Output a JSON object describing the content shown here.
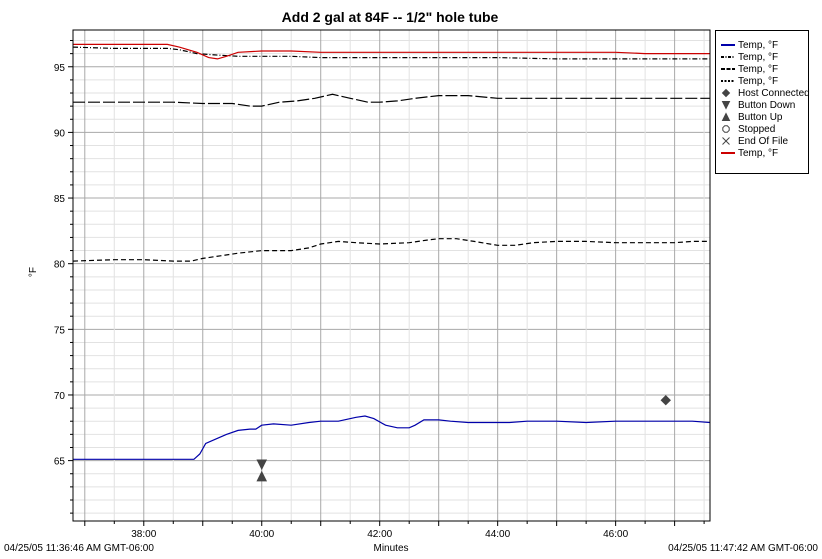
{
  "chart_data": {
    "type": "line",
    "title": "Add 2 gal at 84F -- 1/2\" hole tube",
    "xlabel": "Minutes",
    "ylabel": "°F",
    "xlim": [
      36.8,
      47.6
    ],
    "ylim": [
      60.4,
      97.8
    ],
    "x_ticks": [
      {
        "value": 38,
        "label": "38:00"
      },
      {
        "value": 40,
        "label": "40:00"
      },
      {
        "value": 42,
        "label": "42:00"
      },
      {
        "value": 44,
        "label": "44:00"
      },
      {
        "value": 46,
        "label": "46:00"
      }
    ],
    "y_ticks": [
      65,
      70,
      75,
      80,
      85,
      90,
      95
    ],
    "grid": true,
    "legend_position": "right",
    "start_time": "04/25/05 11:36:46 AM GMT-06:00",
    "end_time": "04/25/05 11:47:42 AM GMT-06:00",
    "series": [
      {
        "name": "Temp, °F",
        "color": "#0000aa",
        "style": "solid",
        "points": [
          [
            36.8,
            65.1
          ],
          [
            37.5,
            65.1
          ],
          [
            38.0,
            65.1
          ],
          [
            38.5,
            65.1
          ],
          [
            38.85,
            65.1
          ],
          [
            38.95,
            65.5
          ],
          [
            39.05,
            66.3
          ],
          [
            39.2,
            66.6
          ],
          [
            39.4,
            67.0
          ],
          [
            39.6,
            67.3
          ],
          [
            39.8,
            67.4
          ],
          [
            39.9,
            67.4
          ],
          [
            40.0,
            67.7
          ],
          [
            40.2,
            67.8
          ],
          [
            40.5,
            67.7
          ],
          [
            40.8,
            67.9
          ],
          [
            41.0,
            68.0
          ],
          [
            41.3,
            68.0
          ],
          [
            41.6,
            68.3
          ],
          [
            41.75,
            68.4
          ],
          [
            41.9,
            68.2
          ],
          [
            42.1,
            67.7
          ],
          [
            42.3,
            67.5
          ],
          [
            42.5,
            67.5
          ],
          [
            42.6,
            67.7
          ],
          [
            42.75,
            68.1
          ],
          [
            43.0,
            68.1
          ],
          [
            43.2,
            68.0
          ],
          [
            43.5,
            67.9
          ],
          [
            43.8,
            67.9
          ],
          [
            44.2,
            67.9
          ],
          [
            44.5,
            68.0
          ],
          [
            45.0,
            68.0
          ],
          [
            45.5,
            67.9
          ],
          [
            46.0,
            68.0
          ],
          [
            46.5,
            68.0
          ],
          [
            47.0,
            68.0
          ],
          [
            47.3,
            68.0
          ],
          [
            47.6,
            67.9
          ]
        ]
      },
      {
        "name": "Temp, °F",
        "color": "#000000",
        "style": "dashdot",
        "points": [
          [
            36.8,
            96.5
          ],
          [
            37.5,
            96.4
          ],
          [
            38.0,
            96.4
          ],
          [
            38.4,
            96.4
          ],
          [
            38.6,
            96.3
          ],
          [
            38.9,
            96.0
          ],
          [
            39.2,
            95.9
          ],
          [
            39.6,
            95.8
          ],
          [
            40.0,
            95.8
          ],
          [
            40.5,
            95.8
          ],
          [
            41.0,
            95.7
          ],
          [
            41.5,
            95.7
          ],
          [
            42.0,
            95.7
          ],
          [
            43.0,
            95.7
          ],
          [
            44.0,
            95.7
          ],
          [
            45.0,
            95.6
          ],
          [
            46.0,
            95.6
          ],
          [
            47.0,
            95.6
          ],
          [
            47.6,
            95.6
          ]
        ]
      },
      {
        "name": "Temp, °F",
        "color": "#000000",
        "style": "longdash",
        "points": [
          [
            36.8,
            92.3
          ],
          [
            37.5,
            92.3
          ],
          [
            38.0,
            92.3
          ],
          [
            38.5,
            92.3
          ],
          [
            39.0,
            92.2
          ],
          [
            39.5,
            92.2
          ],
          [
            39.8,
            92.0
          ],
          [
            40.0,
            92.0
          ],
          [
            40.3,
            92.3
          ],
          [
            40.6,
            92.4
          ],
          [
            40.9,
            92.6
          ],
          [
            41.2,
            92.9
          ],
          [
            41.5,
            92.6
          ],
          [
            41.8,
            92.3
          ],
          [
            42.0,
            92.3
          ],
          [
            42.3,
            92.4
          ],
          [
            42.6,
            92.6
          ],
          [
            43.0,
            92.8
          ],
          [
            43.5,
            92.8
          ],
          [
            44.0,
            92.6
          ],
          [
            44.5,
            92.6
          ],
          [
            45.0,
            92.6
          ],
          [
            45.5,
            92.6
          ],
          [
            46.0,
            92.6
          ],
          [
            46.5,
            92.6
          ],
          [
            47.0,
            92.6
          ],
          [
            47.6,
            92.6
          ]
        ]
      },
      {
        "name": "Temp, °F",
        "color": "#000000",
        "style": "dash",
        "points": [
          [
            36.8,
            80.2
          ],
          [
            37.5,
            80.3
          ],
          [
            38.0,
            80.3
          ],
          [
            38.5,
            80.2
          ],
          [
            38.8,
            80.2
          ],
          [
            39.0,
            80.4
          ],
          [
            39.3,
            80.6
          ],
          [
            39.6,
            80.8
          ],
          [
            40.0,
            81.0
          ],
          [
            40.5,
            81.0
          ],
          [
            40.8,
            81.2
          ],
          [
            41.0,
            81.5
          ],
          [
            41.3,
            81.7
          ],
          [
            41.6,
            81.6
          ],
          [
            42.0,
            81.5
          ],
          [
            42.5,
            81.6
          ],
          [
            42.8,
            81.8
          ],
          [
            43.0,
            81.9
          ],
          [
            43.3,
            81.9
          ],
          [
            43.6,
            81.7
          ],
          [
            44.0,
            81.4
          ],
          [
            44.3,
            81.4
          ],
          [
            44.6,
            81.6
          ],
          [
            45.0,
            81.7
          ],
          [
            45.5,
            81.7
          ],
          [
            46.0,
            81.6
          ],
          [
            46.5,
            81.6
          ],
          [
            47.0,
            81.6
          ],
          [
            47.3,
            81.7
          ],
          [
            47.6,
            81.7
          ]
        ]
      },
      {
        "name": "Temp, °F",
        "color": "#cc0000",
        "style": "solid",
        "points": [
          [
            36.8,
            96.7
          ],
          [
            37.5,
            96.7
          ],
          [
            38.0,
            96.7
          ],
          [
            38.4,
            96.7
          ],
          [
            38.6,
            96.5
          ],
          [
            38.9,
            96.1
          ],
          [
            39.1,
            95.7
          ],
          [
            39.25,
            95.6
          ],
          [
            39.4,
            95.8
          ],
          [
            39.6,
            96.1
          ],
          [
            40.0,
            96.2
          ],
          [
            40.5,
            96.2
          ],
          [
            41.0,
            96.1
          ],
          [
            42.0,
            96.1
          ],
          [
            43.0,
            96.1
          ],
          [
            44.0,
            96.1
          ],
          [
            45.0,
            96.1
          ],
          [
            46.0,
            96.1
          ],
          [
            46.5,
            96.0
          ],
          [
            47.0,
            96.0
          ],
          [
            47.6,
            96.0
          ]
        ]
      }
    ],
    "markers": [
      {
        "name": "Host Connected",
        "symbol": "diamond",
        "x": 46.85,
        "y": 69.6
      },
      {
        "name": "Button Down",
        "symbol": "triangle-down",
        "x": 40.0,
        "y": 64.7
      },
      {
        "name": "Button Up",
        "symbol": "triangle-up",
        "x": 40.0,
        "y": 63.8
      }
    ],
    "legend": [
      {
        "label": "Temp, °F",
        "symbol": "line-solid",
        "color": "#0000aa"
      },
      {
        "label": "Temp, °F",
        "symbol": "line-dashdot",
        "color": "#000000"
      },
      {
        "label": "Temp, °F",
        "symbol": "line-longdash",
        "color": "#000000"
      },
      {
        "label": "Temp, °F",
        "symbol": "line-dotted",
        "color": "#000000"
      },
      {
        "label": "Host Connected",
        "symbol": "diamond",
        "color": "#444444"
      },
      {
        "label": "Button Down",
        "symbol": "triangle-down",
        "color": "#444444"
      },
      {
        "label": "Button Up",
        "symbol": "triangle-up",
        "color": "#444444"
      },
      {
        "label": "Stopped",
        "symbol": "octagon",
        "color": "#444444"
      },
      {
        "label": "End Of File",
        "symbol": "cross",
        "color": "#444444"
      },
      {
        "label": "Temp, °F",
        "symbol": "line-solid",
        "color": "#cc0000"
      }
    ]
  }
}
